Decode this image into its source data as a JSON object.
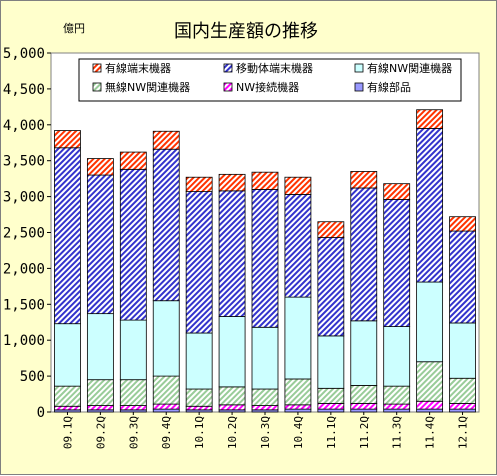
{
  "chart_data": {
    "type": "bar",
    "stacked": true,
    "title": "国内生産額の推移",
    "ylabel": "億円",
    "xlabel": "",
    "ylim": [
      0,
      5000
    ],
    "yticks": [
      0,
      500,
      1000,
      1500,
      2000,
      2500,
      3000,
      3500,
      4000,
      4500,
      5000
    ],
    "ytick_labels": [
      "0",
      "500",
      "1,000",
      "1,500",
      "2,000",
      "2,500",
      "3,000",
      "3,500",
      "4,000",
      "4,500",
      "5,000"
    ],
    "grid": false,
    "legend_position": "top",
    "categories": [
      "09.1Q",
      "09.2Q",
      "09.3Q",
      "09.4Q",
      "10.1Q",
      "10.2Q",
      "10.3Q",
      "10.4Q",
      "11.1Q",
      "11.2Q",
      "11.3Q",
      "11.4Q",
      "12.1Q"
    ],
    "series": [
      {
        "name": "有線部品",
        "color": "#9999ff",
        "pattern": "solid",
        "values": [
          30,
          30,
          30,
          40,
          30,
          30,
          30,
          40,
          40,
          40,
          40,
          40,
          40
        ]
      },
      {
        "name": "NW接続機器",
        "color": "#ff00ff",
        "pattern": "hatch",
        "values": [
          50,
          60,
          60,
          70,
          50,
          70,
          60,
          60,
          80,
          80,
          70,
          110,
          80
        ]
      },
      {
        "name": "無線NW関連機器",
        "color": "#99cc99",
        "pattern": "hatch",
        "values": [
          280,
          360,
          360,
          390,
          240,
          250,
          230,
          360,
          210,
          250,
          250,
          550,
          350
        ]
      },
      {
        "name": "有線NW関連機器",
        "color": "#ccffff",
        "pattern": "solid",
        "values": [
          870,
          920,
          830,
          1050,
          780,
          980,
          860,
          1140,
          730,
          900,
          830,
          1110,
          770
        ]
      },
      {
        "name": "移動体端末機器",
        "color": "#3333cc",
        "pattern": "hatch",
        "values": [
          2450,
          1930,
          2100,
          2110,
          1970,
          1750,
          1920,
          1430,
          1370,
          1850,
          1770,
          2140,
          1280
        ]
      },
      {
        "name": "有線端末機器",
        "color": "#ff3300",
        "pattern": "hatch",
        "values": [
          240,
          230,
          240,
          250,
          200,
          230,
          240,
          240,
          220,
          230,
          220,
          260,
          200
        ]
      }
    ],
    "totals": [
      3920,
      3530,
      3620,
      3910,
      3270,
      3310,
      3340,
      3270,
      2650,
      3350,
      3180,
      4210,
      2720
    ]
  },
  "legend": {
    "rows": [
      [
        "有線端末機器",
        "移動体端末機器",
        "有線NW関連機器"
      ],
      [
        "無線NW関連機器",
        "NW接続機器",
        "有線部品"
      ]
    ]
  }
}
